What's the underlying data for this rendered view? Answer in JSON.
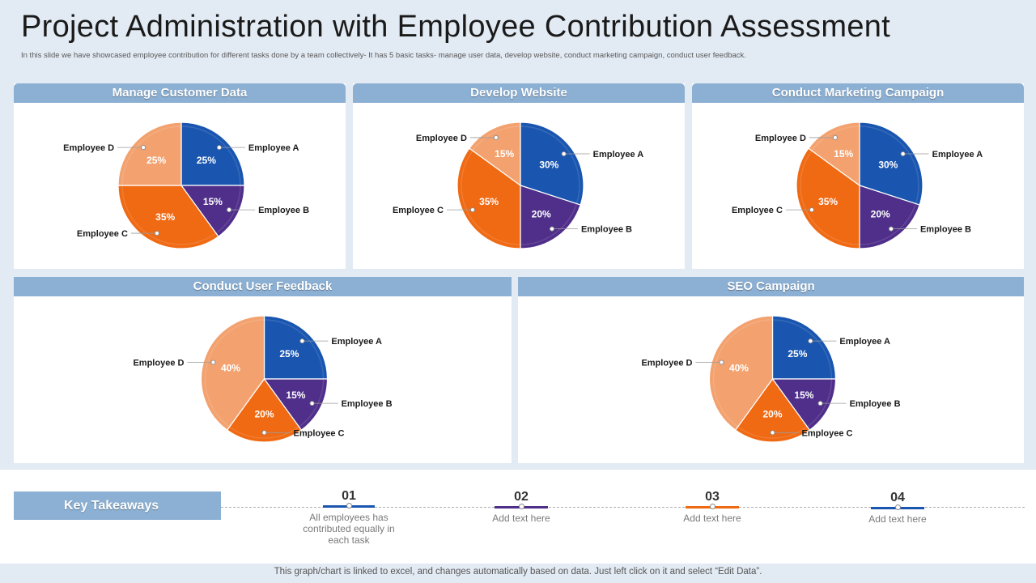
{
  "page": {
    "title": "Project Administration with Employee Contribution Assessment",
    "subtitle": "In this slide we have showcased employee contribution for different tasks done by a team collectively- It has 5 basic tasks- manage user data, develop website, conduct marketing campaign,  conduct user feedback.",
    "footer": "This graph/chart is linked to excel,  and changes automatically based on data. Just left click on it and select “Edit Data”."
  },
  "colors": {
    "employee_a": "#1a56b0",
    "employee_b": "#4f2f8a",
    "employee_c": "#f06a14",
    "employee_d": "#f3a26f",
    "header": "#8cb0d3"
  },
  "chart_data": [
    {
      "type": "pie",
      "title": "Manage Customer Data",
      "categories": [
        "Employee A",
        "Employee B",
        "Employee C",
        "Employee D"
      ],
      "values": [
        25,
        15,
        35,
        25
      ],
      "labels": [
        "25%",
        "15%",
        "35%",
        "25%"
      ]
    },
    {
      "type": "pie",
      "title": "Develop Website",
      "categories": [
        "Employee A",
        "Employee B",
        "Employee C",
        "Employee D"
      ],
      "values": [
        30,
        20,
        35,
        15
      ],
      "labels": [
        "30%",
        "20%",
        "35%",
        "15%"
      ]
    },
    {
      "type": "pie",
      "title": "Conduct Marketing Campaign",
      "categories": [
        "Employee A",
        "Employee B",
        "Employee C",
        "Employee D"
      ],
      "values": [
        30,
        20,
        35,
        15
      ],
      "labels": [
        "30%",
        "20%",
        "35%",
        "15%"
      ]
    },
    {
      "type": "pie",
      "title": "Conduct User Feedback",
      "categories": [
        "Employee A",
        "Employee B",
        "Employee C",
        "Employee D"
      ],
      "values": [
        25,
        15,
        20,
        40
      ],
      "labels": [
        "25%",
        "15%",
        "20%",
        "40%"
      ]
    },
    {
      "type": "pie",
      "title": "SEO Campaign",
      "categories": [
        "Employee A",
        "Employee B",
        "Employee C",
        "Employee D"
      ],
      "values": [
        25,
        15,
        20,
        40
      ],
      "labels": [
        "25%",
        "15%",
        "20%",
        "40%"
      ]
    }
  ],
  "takeaways": {
    "label": "Key Takeaways",
    "steps": [
      {
        "num": "01",
        "text": "All employees has contributed equally in each task",
        "color": "#1a56b0"
      },
      {
        "num": "02",
        "text": "Add text here",
        "color": "#4f2f8a"
      },
      {
        "num": "03",
        "text": "Add text here",
        "color": "#f06a14"
      },
      {
        "num": "04",
        "text": "Add text here",
        "color": "#1a56b0"
      }
    ]
  }
}
